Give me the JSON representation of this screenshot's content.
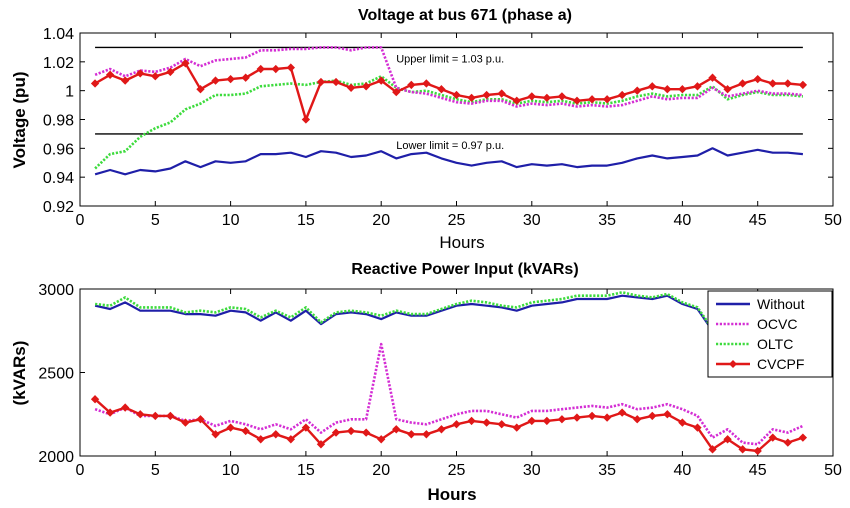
{
  "chart_data": [
    {
      "type": "line",
      "title": "Voltage at bus 671 (phase a)",
      "xlabel": "Hours",
      "ylabel": "Voltage (pu)",
      "xlim": [
        0,
        50
      ],
      "ylim": [
        0.92,
        1.04
      ],
      "xticks": [
        0,
        5,
        10,
        15,
        20,
        25,
        30,
        35,
        40,
        45,
        50
      ],
      "yticks": [
        0.92,
        0.94,
        0.96,
        0.98,
        1.0,
        1.02,
        1.04
      ],
      "xtick_labels": [
        "0",
        "5",
        "10",
        "15",
        "20",
        "25",
        "30",
        "35",
        "40",
        "45",
        "50"
      ],
      "ytick_labels": [
        "0.92",
        "0.94",
        "0.96",
        "0.98",
        "1",
        "1.02",
        "1.04"
      ],
      "grid": false,
      "reference_lines": [
        {
          "y": 1.03,
          "label": "Upper limit = 1.03 p.u.",
          "label_x": 20.6
        },
        {
          "y": 0.97,
          "label": "Lower limit = 0.97 p.u.",
          "label_x": 20.6
        }
      ],
      "x": [
        1,
        2,
        3,
        4,
        5,
        6,
        7,
        8,
        9,
        10,
        11,
        12,
        13,
        14,
        15,
        16,
        17,
        18,
        19,
        20,
        21,
        22,
        23,
        24,
        25,
        26,
        27,
        28,
        29,
        30,
        31,
        32,
        33,
        34,
        35,
        36,
        37,
        38,
        39,
        40,
        41,
        42,
        43,
        44,
        45,
        46,
        47,
        48
      ],
      "series": [
        {
          "name": "Without",
          "color": "#1f1fa8",
          "style": "solid",
          "values": [
            0.942,
            0.945,
            0.942,
            0.945,
            0.944,
            0.946,
            0.951,
            0.947,
            0.951,
            0.95,
            0.951,
            0.956,
            0.956,
            0.957,
            0.954,
            0.958,
            0.957,
            0.954,
            0.955,
            0.958,
            0.953,
            0.956,
            0.957,
            0.953,
            0.95,
            0.948,
            0.95,
            0.951,
            0.947,
            0.949,
            0.948,
            0.949,
            0.947,
            0.948,
            0.948,
            0.95,
            0.953,
            0.955,
            0.953,
            0.954,
            0.955,
            0.96,
            0.955,
            0.957,
            0.959,
            0.957,
            0.957,
            0.956
          ]
        },
        {
          "name": "OCVC",
          "color": "#d42ed4",
          "style": "dotted",
          "values": [
            1.011,
            1.015,
            1.01,
            1.014,
            1.013,
            1.016,
            1.022,
            1.017,
            1.021,
            1.022,
            1.023,
            1.028,
            1.028,
            1.029,
            1.029,
            1.03,
            1.03,
            1.028,
            1.03,
            1.03,
            1.002,
            0.999,
            0.998,
            0.995,
            0.992,
            0.991,
            0.993,
            0.993,
            0.989,
            0.991,
            0.99,
            0.991,
            0.989,
            0.99,
            0.989,
            0.99,
            0.993,
            0.996,
            0.994,
            0.995,
            0.995,
            1.002,
            0.996,
            0.998,
            1.0,
            0.998,
            0.998,
            0.997
          ]
        },
        {
          "name": "OLTC",
          "color": "#3ddb3d",
          "style": "dotted",
          "values": [
            0.946,
            0.956,
            0.958,
            0.968,
            0.974,
            0.978,
            0.987,
            0.991,
            0.997,
            0.997,
            0.998,
            1.003,
            1.004,
            1.005,
            1.004,
            1.006,
            1.007,
            1.004,
            1.005,
            1.01,
            1.002,
            0.999,
            1.0,
            0.997,
            0.994,
            0.992,
            0.994,
            0.994,
            0.991,
            0.993,
            0.992,
            0.993,
            0.991,
            0.992,
            0.991,
            0.993,
            0.996,
            0.998,
            0.996,
            0.997,
            0.997,
            1.003,
            0.994,
            0.997,
            0.999,
            0.997,
            0.997,
            0.996
          ]
        },
        {
          "name": "CVCPF",
          "color": "#e01818",
          "style": "solid-marker",
          "values": [
            1.005,
            1.011,
            1.007,
            1.012,
            1.01,
            1.013,
            1.019,
            1.001,
            1.007,
            1.008,
            1.009,
            1.015,
            1.015,
            1.016,
            0.98,
            1.006,
            1.006,
            1.002,
            1.003,
            1.007,
            0.999,
            1.004,
            1.005,
            1.001,
            0.997,
            0.995,
            0.997,
            0.998,
            0.993,
            0.996,
            0.995,
            0.996,
            0.993,
            0.994,
            0.994,
            0.997,
            1.0,
            1.003,
            1.001,
            1.001,
            1.003,
            1.009,
            1.001,
            1.005,
            1.008,
            1.005,
            1.005,
            1.004
          ]
        }
      ]
    },
    {
      "type": "line",
      "title": "Reactive Power Input (kVARs)",
      "xlabel": "Hours",
      "ylabel": "(kVARs)",
      "xlim": [
        0,
        50
      ],
      "ylim": [
        2000,
        3000
      ],
      "xticks": [
        0,
        5,
        10,
        15,
        20,
        25,
        30,
        35,
        40,
        45,
        50
      ],
      "yticks": [
        2000,
        2500,
        3000
      ],
      "xtick_labels": [
        "0",
        "5",
        "10",
        "15",
        "20",
        "25",
        "30",
        "35",
        "40",
        "45",
        "50"
      ],
      "ytick_labels": [
        "2000",
        "2500",
        "3000"
      ],
      "grid": false,
      "legend": {
        "position": "top-right",
        "entries": [
          "Without",
          "OCVC",
          "OLTC",
          "CVCPF"
        ]
      },
      "x": [
        1,
        2,
        3,
        4,
        5,
        6,
        7,
        8,
        9,
        10,
        11,
        12,
        13,
        14,
        15,
        16,
        17,
        18,
        19,
        20,
        21,
        22,
        23,
        24,
        25,
        26,
        27,
        28,
        29,
        30,
        31,
        32,
        33,
        34,
        35,
        36,
        37,
        38,
        39,
        40,
        41,
        42,
        43,
        44,
        45,
        46,
        47,
        48
      ],
      "series": [
        {
          "name": "Without",
          "color": "#1f1fa8",
          "style": "solid",
          "values": [
            2900,
            2880,
            2920,
            2870,
            2870,
            2870,
            2850,
            2850,
            2840,
            2870,
            2860,
            2810,
            2860,
            2810,
            2870,
            2790,
            2850,
            2860,
            2850,
            2820,
            2860,
            2840,
            2840,
            2870,
            2900,
            2910,
            2900,
            2890,
            2870,
            2900,
            2910,
            2920,
            2940,
            2940,
            2940,
            2960,
            2950,
            2940,
            2960,
            2910,
            2880,
            2750,
            null,
            null,
            null,
            null,
            null,
            null
          ]
        },
        {
          "name": "OCVC",
          "color": "#d42ed4",
          "style": "dotted",
          "values": [
            2280,
            2250,
            2290,
            2240,
            2240,
            2240,
            2210,
            2220,
            2180,
            2210,
            2190,
            2160,
            2190,
            2160,
            2220,
            2140,
            2200,
            2220,
            2220,
            2670,
            2220,
            2200,
            2190,
            2220,
            2250,
            2270,
            2270,
            2250,
            2230,
            2270,
            2270,
            2280,
            2290,
            2300,
            2290,
            2310,
            2280,
            2290,
            2310,
            2280,
            2240,
            2110,
            2160,
            2080,
            2070,
            2160,
            2140,
            2180
          ]
        },
        {
          "name": "OLTC",
          "color": "#3ddb3d",
          "style": "dotted",
          "values": [
            2910,
            2900,
            2950,
            2890,
            2890,
            2890,
            2860,
            2870,
            2860,
            2890,
            2880,
            2830,
            2870,
            2830,
            2890,
            2800,
            2860,
            2870,
            2860,
            2840,
            2870,
            2850,
            2850,
            2880,
            2910,
            2930,
            2920,
            2900,
            2890,
            2920,
            2930,
            2940,
            2960,
            2960,
            2960,
            2980,
            2960,
            2950,
            2970,
            2920,
            2890,
            2760,
            null,
            null,
            null,
            null,
            null,
            null
          ]
        },
        {
          "name": "CVCPF",
          "color": "#e01818",
          "style": "solid-marker",
          "values": [
            2340,
            2260,
            2290,
            2250,
            2240,
            2240,
            2200,
            2220,
            2130,
            2170,
            2150,
            2100,
            2130,
            2100,
            2170,
            2070,
            2140,
            2150,
            2140,
            2100,
            2160,
            2130,
            2130,
            2160,
            2190,
            2210,
            2200,
            2190,
            2170,
            2210,
            2210,
            2220,
            2230,
            2240,
            2230,
            2260,
            2220,
            2240,
            2250,
            2200,
            2170,
            2040,
            2100,
            2040,
            2030,
            2110,
            2080,
            2110
          ]
        }
      ]
    }
  ]
}
